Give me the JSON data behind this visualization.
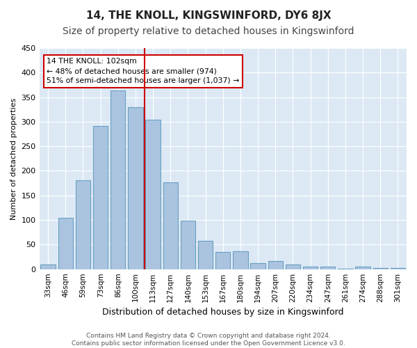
{
  "title": "14, THE KNOLL, KINGSWINFORD, DY6 8JX",
  "subtitle": "Size of property relative to detached houses in Kingswinford",
  "xlabel": "Distribution of detached houses by size in Kingswinford",
  "ylabel": "Number of detached properties",
  "categories": [
    "33sqm",
    "46sqm",
    "59sqm",
    "73sqm",
    "86sqm",
    "100sqm",
    "113sqm",
    "127sqm",
    "140sqm",
    "153sqm",
    "167sqm",
    "180sqm",
    "194sqm",
    "207sqm",
    "220sqm",
    "234sqm",
    "247sqm",
    "261sqm",
    "274sqm",
    "288sqm",
    "301sqm"
  ],
  "values": [
    10,
    104,
    181,
    291,
    364,
    330,
    304,
    177,
    99,
    58,
    35,
    36,
    13,
    17,
    10,
    5,
    5,
    1,
    5,
    3,
    3
  ],
  "bar_color": "#aac4e0",
  "bar_edge_color": "#6a9fc0",
  "vline_x_index": 5,
  "vline_color": "#cc0000",
  "annotation_text": "14 THE KNOLL: 102sqm\n← 48% of detached houses are smaller (974)\n51% of semi-detached houses are larger (1,037) →",
  "annotation_box_color": "#ffffff",
  "annotation_box_edge": "#cc0000",
  "ylim": [
    0,
    450
  ],
  "yticks": [
    0,
    50,
    100,
    150,
    200,
    250,
    300,
    350,
    400,
    450
  ],
  "footnote": "Contains HM Land Registry data © Crown copyright and database right 2024.\nContains public sector information licensed under the Open Government Licence v3.0.",
  "bg_color": "#dce9f5",
  "fig_bg_color": "#ffffff",
  "title_fontsize": 11,
  "subtitle_fontsize": 10
}
